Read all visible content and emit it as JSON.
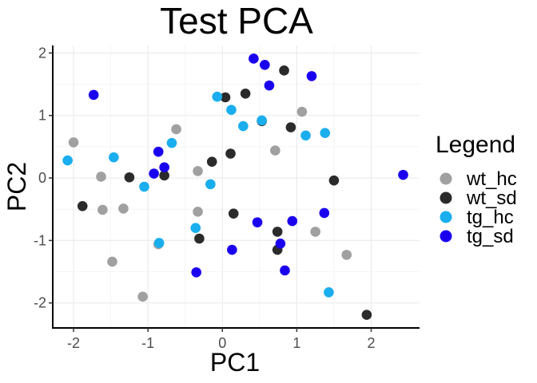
{
  "chart_data": {
    "type": "scatter",
    "title": "Test PCA",
    "xlabel": "PC1",
    "ylabel": "PC2",
    "xlim": [
      -2.28,
      2.65
    ],
    "ylim": [
      -2.4,
      2.12
    ],
    "xticks": [
      -2,
      -1,
      0,
      1,
      2
    ],
    "yticks": [
      -2,
      -1,
      0,
      1,
      2
    ],
    "grid": true,
    "legend": {
      "title": "Legend",
      "position": "right"
    },
    "series": [
      {
        "name": "wt_hc",
        "color": "#a0a0a0",
        "points": [
          [
            -2.0,
            0.57
          ],
          [
            -1.63,
            0.02
          ],
          [
            -1.61,
            -0.51
          ],
          [
            -1.33,
            -0.49
          ],
          [
            -1.48,
            -1.34
          ],
          [
            -1.07,
            -1.9
          ],
          [
            -0.86,
            -1.06
          ],
          [
            -0.62,
            0.78
          ],
          [
            -0.33,
            0.11
          ],
          [
            -0.33,
            -0.54
          ],
          [
            0.71,
            0.44
          ],
          [
            1.07,
            1.06
          ],
          [
            1.25,
            -0.86
          ],
          [
            1.67,
            -1.23
          ]
        ]
      },
      {
        "name": "wt_sd",
        "color": "#2b2b2b",
        "points": [
          [
            -1.88,
            -0.45
          ],
          [
            -1.25,
            0.01
          ],
          [
            -0.78,
            0.04
          ],
          [
            -0.31,
            -0.97
          ],
          [
            -0.14,
            0.26
          ],
          [
            0.04,
            1.29
          ],
          [
            0.11,
            0.39
          ],
          [
            0.15,
            -0.57
          ],
          [
            0.31,
            1.35
          ],
          [
            0.53,
            0.91
          ],
          [
            0.74,
            -0.86
          ],
          [
            0.74,
            -1.15
          ],
          [
            0.83,
            1.72
          ],
          [
            0.92,
            0.81
          ],
          [
            1.5,
            -0.04
          ],
          [
            1.94,
            -2.19
          ]
        ]
      },
      {
        "name": "tg_hc",
        "color": "#1aaeef",
        "points": [
          [
            -2.08,
            0.28
          ],
          [
            -1.46,
            0.33
          ],
          [
            -1.05,
            -0.14
          ],
          [
            -0.85,
            -1.04
          ],
          [
            -0.68,
            0.56
          ],
          [
            -0.36,
            -0.8
          ],
          [
            -0.16,
            -0.1
          ],
          [
            -0.07,
            1.3
          ],
          [
            0.12,
            1.09
          ],
          [
            0.28,
            0.83
          ],
          [
            0.53,
            0.92
          ],
          [
            1.12,
            0.68
          ],
          [
            1.38,
            0.72
          ],
          [
            1.43,
            -1.83
          ]
        ]
      },
      {
        "name": "tg_sd",
        "color": "#1a00ee",
        "points": [
          [
            -1.73,
            1.33
          ],
          [
            -0.92,
            0.07
          ],
          [
            -0.86,
            0.42
          ],
          [
            -0.78,
            0.17
          ],
          [
            -0.35,
            -1.51
          ],
          [
            0.13,
            -1.15
          ],
          [
            0.42,
            1.91
          ],
          [
            0.57,
            1.81
          ],
          [
            0.63,
            1.48
          ],
          [
            0.47,
            -0.71
          ],
          [
            0.78,
            -1.05
          ],
          [
            0.84,
            -1.48
          ],
          [
            0.94,
            -0.69
          ],
          [
            1.2,
            1.63
          ],
          [
            1.37,
            -0.56
          ],
          [
            2.43,
            0.05
          ]
        ]
      }
    ]
  }
}
